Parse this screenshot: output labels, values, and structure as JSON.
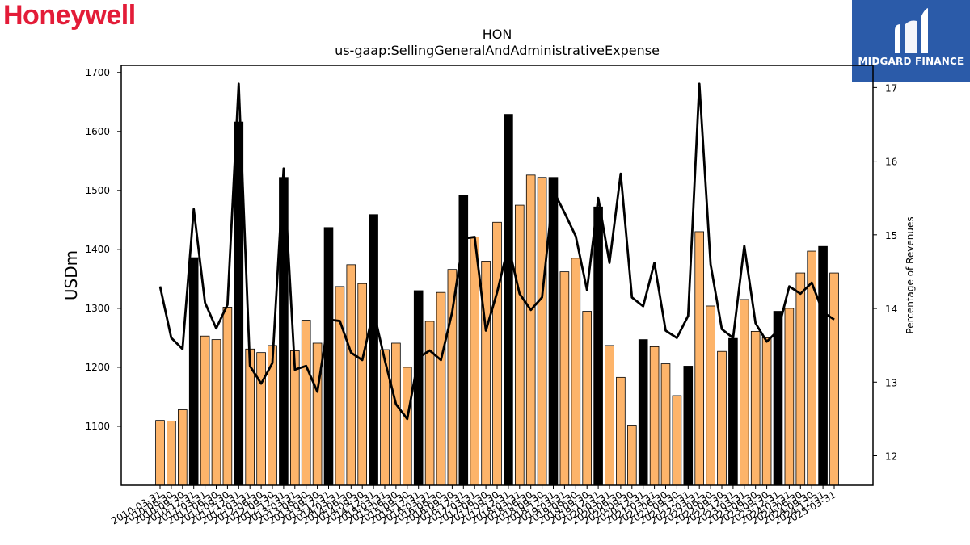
{
  "brand": {
    "logo_text": "Honeywell"
  },
  "publisher": {
    "logo_text": "MIDGARD FINANCE"
  },
  "colors": {
    "bar_regular": "#fdb46a",
    "bar_annual": "#000000",
    "line": "#000000",
    "brand_red": "#e31c38",
    "publisher_blue": "#2b5ba9"
  },
  "chart_data": {
    "type": "bar",
    "title": "HON",
    "subtitle": "us-gaap:SellingGeneralAndAdministrativeExpense",
    "ylabel": "USDm",
    "y2label": "Percentage of Revenues",
    "ylim": [
      1000,
      1712
    ],
    "y2lim": [
      11.6,
      17.3
    ],
    "yticks": [
      1100,
      1200,
      1300,
      1400,
      1500,
      1600,
      1700
    ],
    "y2ticks": [
      12,
      13,
      14,
      15,
      16,
      17
    ],
    "grid": false,
    "categories": [
      "2010-03-31",
      "2010-06-30",
      "2010-09-30",
      "2010-12-31",
      "2011-03-31",
      "2011-06-30",
      "2011-09-30",
      "2011-12-31",
      "2012-03-31",
      "2012-06-30",
      "2012-09-30",
      "2012-12-31",
      "2013-03-31",
      "2013-06-30",
      "2013-09-30",
      "2013-12-31",
      "2014-03-31",
      "2014-06-30",
      "2014-09-30",
      "2014-12-31",
      "2015-03-31",
      "2015-06-30",
      "2015-09-30",
      "2015-12-31",
      "2016-03-31",
      "2016-06-30",
      "2016-09-30",
      "2016-12-31",
      "2017-03-31",
      "2017-06-30",
      "2017-09-30",
      "2017-12-31",
      "2018-03-31",
      "2018-06-30",
      "2018-09-30",
      "2018-12-31",
      "2019-03-31",
      "2019-06-30",
      "2019-09-30",
      "2019-12-31",
      "2020-03-31",
      "2020-06-30",
      "2020-09-30",
      "2020-12-31",
      "2021-03-31",
      "2021-06-30",
      "2021-09-30",
      "2021-12-31",
      "2022-03-31",
      "2022-06-30",
      "2022-09-30",
      "2022-12-31",
      "2023-03-31",
      "2023-06-30",
      "2023-09-30",
      "2023-12-31",
      "2024-03-31",
      "2024-06-30",
      "2024-09-30",
      "2024-12-31",
      "2025-03-31"
    ],
    "series": [
      {
        "values": [
          1110,
          1109,
          1128,
          1386,
          1253,
          1247,
          1302,
          1616,
          1231,
          1225,
          1237,
          1522,
          1228,
          1280,
          1241,
          1437,
          1337,
          1374,
          1342,
          1459,
          1230,
          1241,
          1200,
          1330,
          1278,
          1327,
          1366,
          1492,
          1421,
          1380,
          1446,
          1629,
          1475,
          1526,
          1522,
          1522,
          1362,
          1385,
          1295,
          1472,
          1237,
          1183,
          1102,
          1247,
          1235,
          1206,
          1152,
          1202,
          1430,
          1304,
          1227,
          1249,
          1315,
          1261,
          1250,
          1295,
          1300,
          1360,
          1397,
          1405,
          1360
        ],
        "annual_flags": [
          false,
          false,
          false,
          true,
          false,
          false,
          false,
          true,
          false,
          false,
          false,
          true,
          false,
          false,
          false,
          true,
          false,
          false,
          false,
          true,
          false,
          false,
          false,
          true,
          false,
          false,
          false,
          true,
          false,
          false,
          false,
          true,
          false,
          false,
          false,
          true,
          false,
          false,
          false,
          true,
          false,
          false,
          false,
          true,
          false,
          false,
          false,
          true,
          false,
          false,
          false,
          true,
          false,
          false,
          false,
          true,
          false,
          false,
          false,
          true,
          false
        ]
      },
      {
        "axis": "right",
        "type": "line",
        "values": [
          14.3,
          13.6,
          13.45,
          15.35,
          14.08,
          13.73,
          14.05,
          17.05,
          13.22,
          12.98,
          13.26,
          15.9,
          13.17,
          13.22,
          12.87,
          13.85,
          13.83,
          13.4,
          13.3,
          13.97,
          13.3,
          12.7,
          12.5,
          13.33,
          13.43,
          13.3,
          13.95,
          14.95,
          14.97,
          13.7,
          14.22,
          14.85,
          14.2,
          13.98,
          14.15,
          15.6,
          15.3,
          14.98,
          14.25,
          15.5,
          14.62,
          15.83,
          14.15,
          14.03,
          14.62,
          13.7,
          13.6,
          13.9,
          17.05,
          14.6,
          13.72,
          13.6,
          14.85,
          13.8,
          13.55,
          13.7,
          14.3,
          14.2,
          14.35,
          13.95,
          13.85
        ]
      }
    ]
  }
}
